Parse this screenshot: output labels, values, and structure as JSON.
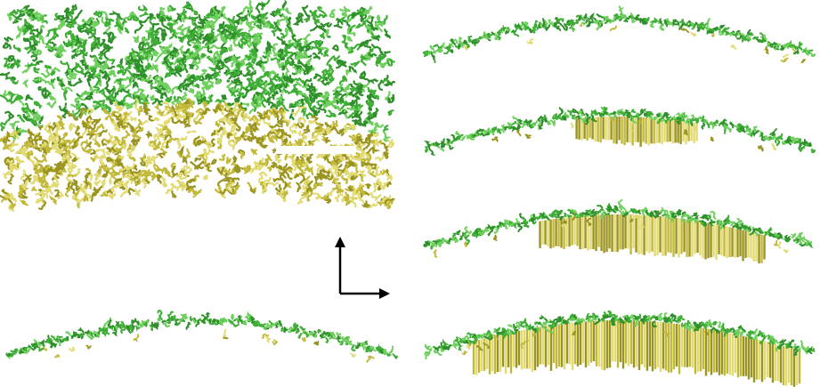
{
  "figure": {
    "colors": {
      "green_dark": "#2f8f2a",
      "green_mid": "#3fae36",
      "green_light": "#6fd05e",
      "yellow_dark": "#9a9420",
      "yellow_mid": "#c2b93a",
      "yellow_light": "#e2da72",
      "scale_bar": "#ffffff",
      "axes": "#000000"
    },
    "panels": [
      {
        "id": "bulk-film",
        "content": "green-over-yellow-polymer-chains"
      },
      {
        "id": "snapshot-1",
        "crystal_fill": 0.05
      },
      {
        "id": "snapshot-2",
        "crystal_fill": 0.3
      },
      {
        "id": "snapshot-3",
        "crystal_fill": 0.6
      },
      {
        "id": "snapshot-4",
        "crystal_fill": 0.95
      },
      {
        "id": "snapshot-bottom",
        "crystal_fill": 0.03
      }
    ],
    "icons": {
      "axes": "axes-arrows-icon"
    }
  }
}
